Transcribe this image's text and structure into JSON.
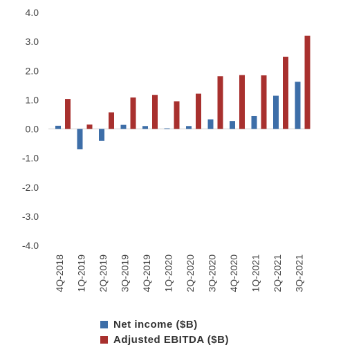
{
  "chart_data": {
    "type": "bar",
    "categories": [
      "4Q-2018",
      "1Q-2019",
      "2Q-2019",
      "3Q-2019",
      "4Q-2019",
      "1Q-2020",
      "2Q-2020",
      "3Q-2020",
      "4Q-2020",
      "1Q-2021",
      "2Q-2021",
      "3Q-2021"
    ],
    "series": [
      {
        "name": "Net income ($B)",
        "color": "#3d6ea8",
        "values": [
          0.11,
          -0.7,
          -0.41,
          0.14,
          0.1,
          0.02,
          0.1,
          0.33,
          0.27,
          0.44,
          1.14,
          1.62
        ]
      },
      {
        "name": "Adjusted EBITDA ($B)",
        "color": "#a8302e",
        "values": [
          1.03,
          0.15,
          0.57,
          1.08,
          1.17,
          0.95,
          1.21,
          1.81,
          1.85,
          1.84,
          2.48,
          3.2
        ]
      }
    ],
    "ylim": [
      -4.0,
      4.0
    ],
    "yticks": [
      "4.0",
      "3.0",
      "2.0",
      "1.0",
      "0.0",
      "-1.0",
      "-2.0",
      "-3.0",
      "-4.0"
    ],
    "grid": false,
    "legend_position": "bottom-center"
  }
}
